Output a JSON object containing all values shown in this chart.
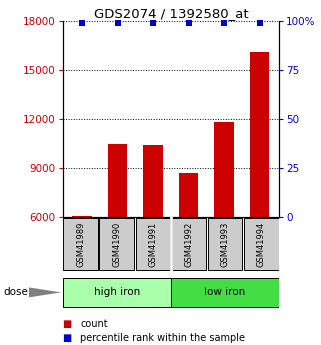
{
  "title": "GDS2074 / 1392580_at",
  "samples": [
    "GSM41989",
    "GSM41990",
    "GSM41991",
    "GSM41992",
    "GSM41993",
    "GSM41994"
  ],
  "counts": [
    6100,
    10500,
    10400,
    8700,
    11800,
    16100
  ],
  "percentile_ranks": [
    99,
    99,
    99,
    99,
    99,
    99
  ],
  "ylim_left": [
    6000,
    18000
  ],
  "ylim_right": [
    0,
    100
  ],
  "yticks_left": [
    6000,
    9000,
    12000,
    15000,
    18000
  ],
  "yticks_right": [
    0,
    25,
    50,
    75,
    100
  ],
  "groups": [
    {
      "label": "high iron",
      "color": "#AAFFAA"
    },
    {
      "label": "low iron",
      "color": "#44DD44"
    }
  ],
  "bar_color": "#CC0000",
  "blue_color": "#0000CC",
  "bar_baseline": 6000,
  "label_color_left": "#CC0000",
  "label_color_right": "#0000CC",
  "sample_box_color": "#CCCCCC",
  "legend_count_color": "#CC0000",
  "legend_percentile_color": "#0000CC",
  "fig_width": 3.21,
  "fig_height": 3.45
}
